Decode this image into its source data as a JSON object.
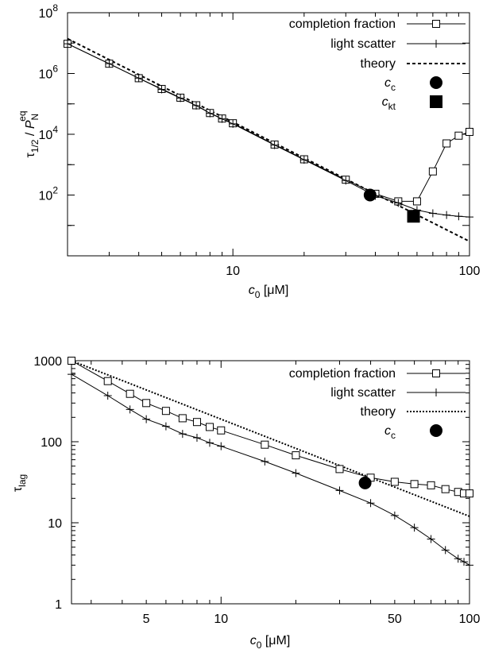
{
  "chart_data": [
    {
      "type": "line",
      "xscale": "log",
      "yscale": "log",
      "xlim": [
        2,
        100
      ],
      "ylim": [
        1,
        100000000
      ],
      "grid": false,
      "legend_position": "top-right",
      "xlabel": {
        "main": "c",
        "sub": "0",
        "unit": " [μM]"
      },
      "ylabel": {
        "tau": "τ",
        "tau_sub": "1/2",
        "sep": " / ",
        "p": "P",
        "p_sub": "N",
        "p_sup": "eq"
      },
      "xticks": [
        {
          "value": 10,
          "label": "10"
        },
        {
          "value": 100,
          "label": "100"
        }
      ],
      "yticks": [
        {
          "value": 100,
          "base": "10",
          "exp": "2"
        },
        {
          "value": 10000,
          "base": "10",
          "exp": "4"
        },
        {
          "value": 1000000,
          "base": "10",
          "exp": "6"
        },
        {
          "value": 100000000,
          "base": "10",
          "exp": "8"
        }
      ],
      "series": [
        {
          "name": "completion fraction",
          "marker": "open-square",
          "line": "solid",
          "x": [
            2,
            3,
            4,
            5,
            6,
            7,
            8,
            9,
            10,
            15,
            20,
            30,
            40,
            50,
            60,
            70,
            80,
            90,
            100
          ],
          "y": [
            9500000,
            2100000,
            700000,
            310000,
            160000,
            90000,
            50000,
            33000,
            23000,
            4600,
            1500,
            320,
            110,
            62,
            62,
            600,
            5000,
            9000,
            12000
          ]
        },
        {
          "name": "light scatter",
          "marker": "plus",
          "line": "solid",
          "x": [
            2,
            3,
            4,
            5,
            6,
            7,
            8,
            9,
            10,
            15,
            20,
            30,
            40,
            50,
            60,
            70,
            80,
            90,
            100
          ],
          "y": [
            9500000,
            2100000,
            700000,
            300000,
            155000,
            88000,
            49000,
            32000,
            22000,
            4400,
            1450,
            300,
            95,
            55,
            32,
            25,
            22,
            20,
            19
          ]
        },
        {
          "name": "theory",
          "marker": "none",
          "line": "dashed",
          "x": [
            2,
            100
          ],
          "y": [
            14000000,
            3
          ]
        }
      ],
      "points": [
        {
          "name": "c",
          "sub": "c",
          "marker": "filled-circle",
          "x": 38,
          "y": 100
        },
        {
          "name": "c",
          "sub": "kt",
          "marker": "filled-square",
          "x": 58,
          "y": 20
        }
      ]
    },
    {
      "type": "line",
      "xscale": "log",
      "yscale": "log",
      "xlim": [
        2.5,
        100
      ],
      "ylim": [
        1,
        1000
      ],
      "grid": false,
      "legend_position": "top-right",
      "xlabel": {
        "main": "c",
        "sub": "0",
        "unit": " [μM]"
      },
      "ylabel": {
        "tau": "τ",
        "tau_sub": "lag"
      },
      "xticks": [
        {
          "value": 5,
          "label": "5"
        },
        {
          "value": 10,
          "label": "10"
        },
        {
          "value": 50,
          "label": "50"
        },
        {
          "value": 100,
          "label": "100"
        }
      ],
      "yticks": [
        {
          "value": 1,
          "label": "1"
        },
        {
          "value": 10,
          "label": "10"
        },
        {
          "value": 100,
          "label": "100"
        },
        {
          "value": 1000,
          "label": "1000"
        }
      ],
      "series": [
        {
          "name": "completion fraction",
          "marker": "open-square",
          "line": "solid",
          "x": [
            2.5,
            3.5,
            4.3,
            5,
            6,
            7,
            8,
            9,
            10,
            15,
            20,
            30,
            40,
            50,
            60,
            70,
            80,
            90,
            95,
            100
          ],
          "y": [
            1000,
            560,
            390,
            300,
            240,
            195,
            175,
            152,
            138,
            92,
            68,
            46,
            36,
            32,
            30,
            29,
            26,
            24,
            23,
            23
          ]
        },
        {
          "name": "light scatter",
          "marker": "plus",
          "line": "solid",
          "x": [
            2.5,
            3.5,
            4.3,
            5,
            6,
            7,
            8,
            9,
            10,
            15,
            20,
            30,
            40,
            50,
            60,
            70,
            80,
            90,
            95,
            100
          ],
          "y": [
            680,
            370,
            250,
            190,
            155,
            125,
            112,
            97,
            88,
            57,
            41,
            25,
            17.5,
            12.3,
            8.7,
            6.3,
            4.6,
            3.6,
            3.3,
            3.0
          ]
        },
        {
          "name": "theory",
          "marker": "none",
          "line": "dotted",
          "x": [
            2.5,
            100
          ],
          "y": [
            1000,
            12
          ]
        }
      ],
      "points": [
        {
          "name": "c",
          "sub": "c",
          "marker": "filled-circle",
          "x": 38,
          "y": 31
        }
      ]
    }
  ]
}
